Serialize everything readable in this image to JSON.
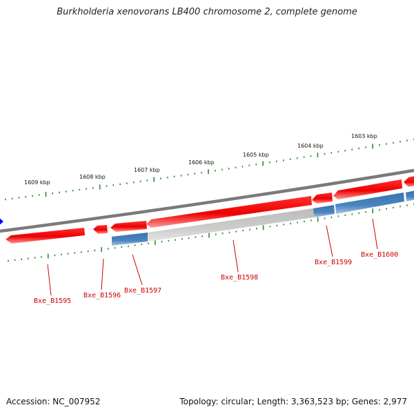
{
  "title": "Burkholderia xenovorans LB400 chromosome 2, complete genome",
  "footer": {
    "accession": "Accession: NC_007952",
    "summary": "Topology: circular; Length: 3,363,523 bp; Genes: 2,977"
  },
  "ruler": {
    "labels": [
      "1609 kbp",
      "1608 kbp",
      "1607 kbp",
      "1606 kbp",
      "1605 kbp",
      "1604 kbp",
      "1603 kbp"
    ]
  },
  "genes": [
    {
      "label": "Bxe_B1595"
    },
    {
      "label": "Bxe_B1596"
    },
    {
      "label": "Bxe_B1597"
    },
    {
      "label": "Bxe_B1598"
    },
    {
      "label": "Bxe_B1599"
    },
    {
      "label": "Bxe_B1600"
    }
  ],
  "colors": {
    "gene_forward": "#ee0000",
    "gene_feature": "#3f7ab5",
    "backbone": "#808080",
    "ruler_ticks": "#2e8b2e",
    "gene_labels": "#cc0000",
    "marker": "#0000ff"
  }
}
